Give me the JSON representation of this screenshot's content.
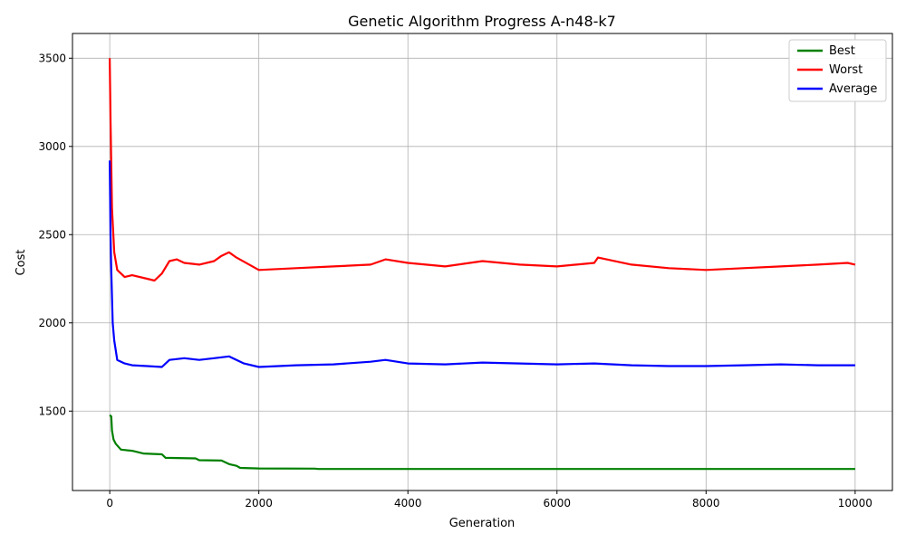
{
  "chart_data": {
    "type": "line",
    "title": "Genetic Algorithm Progress A-n48-k7",
    "xlabel": "Generation",
    "ylabel": "Cost",
    "xlim": [
      -500,
      10500
    ],
    "ylim": [
      1050,
      3640
    ],
    "x_ticks": [
      0,
      2000,
      4000,
      6000,
      8000,
      10000
    ],
    "x_tick_labels": [
      "0",
      "2000",
      "4000",
      "6000",
      "8000",
      "10000"
    ],
    "y_ticks": [
      1500,
      2000,
      2500,
      3000,
      3500
    ],
    "y_tick_labels": [
      "1500",
      "2000",
      "2500",
      "3000",
      "3500"
    ],
    "grid": true,
    "legend_position": "top-right",
    "series": [
      {
        "name": "Best",
        "color": "#008000",
        "x": [
          0,
          20,
          30,
          50,
          80,
          150,
          300,
          450,
          700,
          750,
          1150,
          1200,
          1500,
          1600,
          1700,
          1750,
          2000,
          2750,
          2800,
          10000
        ],
        "y": [
          1477,
          1470,
          1390,
          1340,
          1315,
          1282,
          1275,
          1260,
          1255,
          1235,
          1232,
          1222,
          1220,
          1200,
          1190,
          1178,
          1175,
          1174,
          1172,
          1172
        ]
      },
      {
        "name": "Worst",
        "color": "#ff0000",
        "x": [
          0,
          10,
          30,
          60,
          100,
          200,
          300,
          500,
          600,
          700,
          800,
          900,
          1000,
          1200,
          1400,
          1500,
          1600,
          1700,
          2000,
          2500,
          3000,
          3500,
          3700,
          4000,
          4500,
          5000,
          5500,
          6000,
          6500,
          6550,
          7000,
          7500,
          8000,
          8500,
          9000,
          9500,
          9900,
          10000
        ],
        "y": [
          3500,
          3150,
          2650,
          2400,
          2300,
          2260,
          2270,
          2250,
          2240,
          2280,
          2350,
          2360,
          2340,
          2330,
          2350,
          2380,
          2400,
          2370,
          2300,
          2310,
          2320,
          2330,
          2360,
          2340,
          2320,
          2350,
          2330,
          2320,
          2340,
          2370,
          2330,
          2310,
          2300,
          2310,
          2320,
          2330,
          2340,
          2330
        ]
      },
      {
        "name": "Average",
        "color": "#0000ff",
        "x": [
          0,
          10,
          20,
          40,
          60,
          100,
          200,
          300,
          500,
          700,
          800,
          1000,
          1200,
          1400,
          1600,
          1800,
          2000,
          2500,
          3000,
          3500,
          3700,
          4000,
          4500,
          5000,
          5500,
          6000,
          6500,
          7000,
          7500,
          8000,
          8500,
          9000,
          9500,
          10000
        ],
        "y": [
          2920,
          2500,
          2300,
          2000,
          1900,
          1790,
          1770,
          1760,
          1755,
          1750,
          1790,
          1800,
          1790,
          1800,
          1810,
          1770,
          1750,
          1760,
          1765,
          1780,
          1790,
          1770,
          1765,
          1775,
          1770,
          1765,
          1770,
          1760,
          1755,
          1755,
          1760,
          1765,
          1760,
          1760
        ]
      }
    ]
  }
}
